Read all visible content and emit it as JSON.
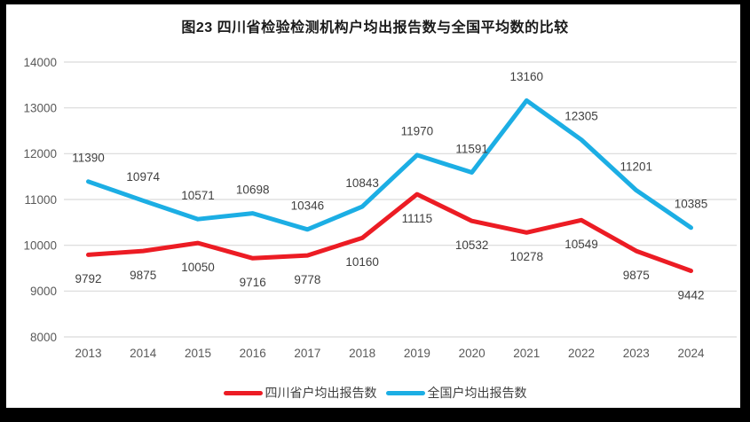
{
  "title": "图23  四川省检验检测机构户均出报告数与全国平均数的比较",
  "chart_data": {
    "type": "line",
    "categories": [
      "2013",
      "2014",
      "2015",
      "2016",
      "2017",
      "2018",
      "2019",
      "2020",
      "2021",
      "2022",
      "2023",
      "2024"
    ],
    "series": [
      {
        "name": "四川省户均出报告数",
        "color": "#ec1c24",
        "values": [
          9792,
          9875,
          10050,
          9716,
          9778,
          10160,
          11115,
          10532,
          10278,
          10549,
          9875,
          9442
        ],
        "label_dy": 27
      },
      {
        "name": "全国户均出报告数",
        "color": "#1caee4",
        "values": [
          11390,
          10974,
          10571,
          10698,
          10346,
          10843,
          11970,
          11591,
          13160,
          12305,
          11201,
          10385
        ],
        "label_dy": -27
      }
    ],
    "xlabel": "",
    "ylabel": "",
    "ylim": [
      8000,
      14000
    ],
    "yticks": [
      8000,
      9000,
      10000,
      11000,
      12000,
      13000,
      14000
    ],
    "grid": "horizontal",
    "legend_position": "bottom",
    "colors": {
      "gridline": "#d9d9d9",
      "axis_label": "#595959",
      "data_label": "#404040",
      "panel_bg": "#ffffff",
      "frame_bg": "#000000"
    }
  }
}
